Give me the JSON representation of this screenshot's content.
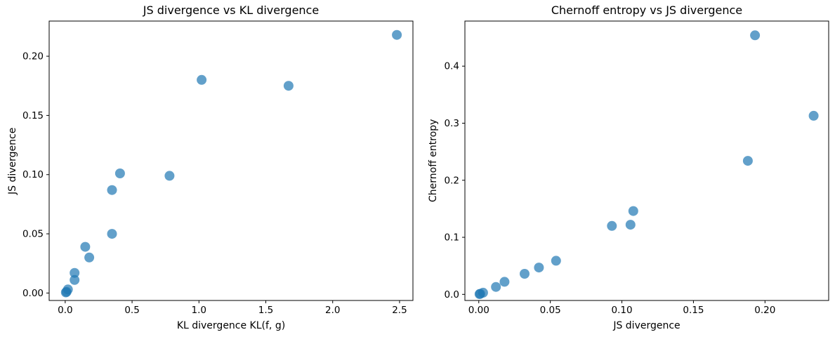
{
  "figure": {
    "background": "#ffffff",
    "marker_color": "#1f77b4",
    "marker_alpha": 0.7,
    "marker_radius": 7,
    "spine_color": "#000000",
    "text_color": "#000000",
    "tick_font_px": 13.5
  },
  "chart_data": [
    {
      "type": "scatter",
      "title": "JS divergence vs KL divergence",
      "xlabel": "KL divergence KL(f, g)",
      "ylabel": "JS divergence",
      "xlim": [
        -0.12,
        2.6
      ],
      "ylim": [
        -0.0063,
        0.2297
      ],
      "grid": false,
      "xtick_values": [
        0.0,
        0.5,
        1.0,
        1.5,
        2.0,
        2.5
      ],
      "xtick_labels": [
        "0.0",
        "0.5",
        "1.0",
        "1.5",
        "2.0",
        "2.5"
      ],
      "ytick_values": [
        0.0,
        0.05,
        0.1,
        0.15,
        0.2
      ],
      "ytick_labels": [
        "0.00",
        "0.05",
        "0.10",
        "0.15",
        "0.20"
      ],
      "points": [
        [
          0.005,
          0.0005
        ],
        [
          0.01,
          0.001
        ],
        [
          0.02,
          0.003
        ],
        [
          0.07,
          0.011
        ],
        [
          0.07,
          0.017
        ],
        [
          0.15,
          0.039
        ],
        [
          0.18,
          0.03
        ],
        [
          0.35,
          0.05
        ],
        [
          0.35,
          0.087
        ],
        [
          0.41,
          0.101
        ],
        [
          0.78,
          0.099
        ],
        [
          1.02,
          0.18
        ],
        [
          1.67,
          0.175
        ],
        [
          2.48,
          0.218
        ]
      ]
    },
    {
      "type": "scatter",
      "title": "Chernoff entropy vs JS divergence",
      "xlabel": "JS divergence",
      "ylabel": "Chernoff entropy",
      "xlim": [
        -0.0097,
        0.2445
      ],
      "ylim": [
        -0.0107,
        0.479
      ],
      "grid": false,
      "xtick_values": [
        0.0,
        0.05,
        0.1,
        0.15,
        0.2
      ],
      "xtick_labels": [
        "0.00",
        "0.05",
        "0.10",
        "0.15",
        "0.20"
      ],
      "ytick_values": [
        0.0,
        0.1,
        0.2,
        0.3,
        0.4
      ],
      "ytick_labels": [
        "0.0",
        "0.1",
        "0.2",
        "0.3",
        "0.4"
      ],
      "points": [
        [
          0.0005,
          0.0005
        ],
        [
          0.001,
          0.001
        ],
        [
          0.003,
          0.003
        ],
        [
          0.012,
          0.013
        ],
        [
          0.018,
          0.022
        ],
        [
          0.032,
          0.036
        ],
        [
          0.042,
          0.047
        ],
        [
          0.054,
          0.059
        ],
        [
          0.093,
          0.12
        ],
        [
          0.106,
          0.122
        ],
        [
          0.108,
          0.146
        ],
        [
          0.188,
          0.234
        ],
        [
          0.193,
          0.454
        ],
        [
          0.234,
          0.313
        ]
      ]
    }
  ]
}
